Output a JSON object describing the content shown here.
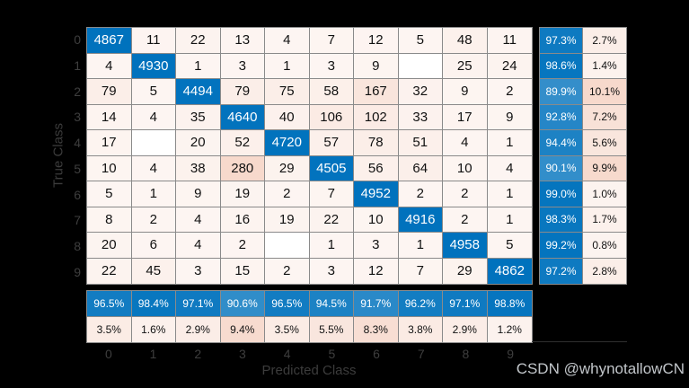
{
  "watermark": "CSDN @whynotallowCN",
  "chart_data": {
    "type": "heatmap",
    "subtype": "confusion-matrix",
    "xlabel": "Predicted Class",
    "ylabel": "True Class",
    "classes": [
      "0",
      "1",
      "2",
      "3",
      "4",
      "5",
      "6",
      "7",
      "8",
      "9"
    ],
    "matrix": [
      [
        4867,
        11,
        22,
        13,
        4,
        7,
        12,
        5,
        48,
        11
      ],
      [
        4,
        4930,
        1,
        3,
        1,
        3,
        9,
        null,
        25,
        24
      ],
      [
        79,
        5,
        4494,
        79,
        75,
        58,
        167,
        32,
        9,
        2
      ],
      [
        14,
        4,
        35,
        4640,
        40,
        106,
        102,
        33,
        17,
        9
      ],
      [
        17,
        null,
        20,
        52,
        4720,
        57,
        78,
        51,
        4,
        1
      ],
      [
        10,
        4,
        38,
        280,
        29,
        4505,
        56,
        64,
        10,
        4
      ],
      [
        5,
        1,
        9,
        19,
        2,
        7,
        4952,
        2,
        2,
        1
      ],
      [
        8,
        2,
        4,
        16,
        19,
        22,
        10,
        4916,
        2,
        1
      ],
      [
        20,
        6,
        4,
        2,
        null,
        1,
        3,
        1,
        4958,
        5
      ],
      [
        22,
        45,
        3,
        15,
        2,
        3,
        12,
        7,
        29,
        4862
      ]
    ],
    "row_summary": {
      "correct_pct": [
        "97.3%",
        "98.6%",
        "89.9%",
        "92.8%",
        "94.4%",
        "90.1%",
        "99.0%",
        "98.3%",
        "99.2%",
        "97.2%"
      ],
      "incorrect_pct": [
        "2.7%",
        "1.4%",
        "10.1%",
        "7.2%",
        "5.6%",
        "9.9%",
        "1.0%",
        "1.7%",
        "0.8%",
        "2.8%"
      ]
    },
    "column_summary": {
      "correct_pct": [
        "96.5%",
        "98.4%",
        "97.1%",
        "90.6%",
        "96.5%",
        "94.5%",
        "91.7%",
        "96.2%",
        "97.1%",
        "98.8%"
      ],
      "incorrect_pct": [
        "3.5%",
        "1.6%",
        "2.9%",
        "9.4%",
        "3.5%",
        "5.5%",
        "8.3%",
        "3.8%",
        "2.9%",
        "1.2%"
      ]
    },
    "layout": {
      "legend": "none",
      "grid": "cell-borders",
      "row_summary_position": "right",
      "column_summary_position": "bottom"
    },
    "colors": {
      "background": "#000000",
      "diagonal_blue": "#0072bd",
      "off_diagonal_orange": "#d95319",
      "empty_cell": "#ffffff",
      "cell_border": "#8a8a8a",
      "axis_text": "#3e3e3e",
      "cell_text_dark": "#111111",
      "cell_text_light": "#ffffff",
      "watermark_text": "#c2c6ca"
    }
  }
}
